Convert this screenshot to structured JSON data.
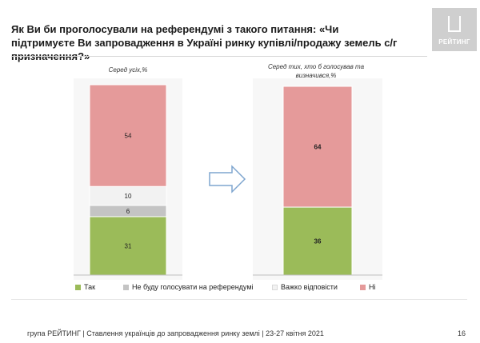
{
  "header": {
    "title": "Як Ви би проголосували на референдумі з такого питання: «Чи підтримуєте Ви запровадження в Україні ринку купівлі/продажу земель с/г призначення?»",
    "logo_text": "РЕЙТИНГ"
  },
  "footer": {
    "source": "група РЕЙТИНГ | Ставлення українців до запровадження ринку землі | 23-27 квітня 2021",
    "page": "16"
  },
  "colors": {
    "yes": "#9bbb59",
    "wont_vote": "#c4c4c4",
    "hard_to_say": "#f2f2f2",
    "no": "#e59a9a",
    "arrow": "#7fa6cf"
  },
  "legend": [
    {
      "key": "yes",
      "label": "Так"
    },
    {
      "key": "wont_vote",
      "label": "Не буду голосувати на референдумі"
    },
    {
      "key": "hard_to_say",
      "label": "Важко відповісти"
    },
    {
      "key": "no",
      "label": "Ні"
    }
  ],
  "chart_data": [
    {
      "type": "bar",
      "stacked": true,
      "subtitle": "Серед усіх,%",
      "segments": [
        {
          "key": "yes",
          "value": 31
        },
        {
          "key": "wont_vote",
          "value": 6
        },
        {
          "key": "hard_to_say",
          "value": 10
        },
        {
          "key": "no",
          "value": 54
        }
      ]
    },
    {
      "type": "bar",
      "stacked": true,
      "subtitle": "Серед тих, хто б голосував та визначився,%",
      "segments": [
        {
          "key": "yes",
          "value": 36
        },
        {
          "key": "no",
          "value": 64
        }
      ]
    }
  ]
}
